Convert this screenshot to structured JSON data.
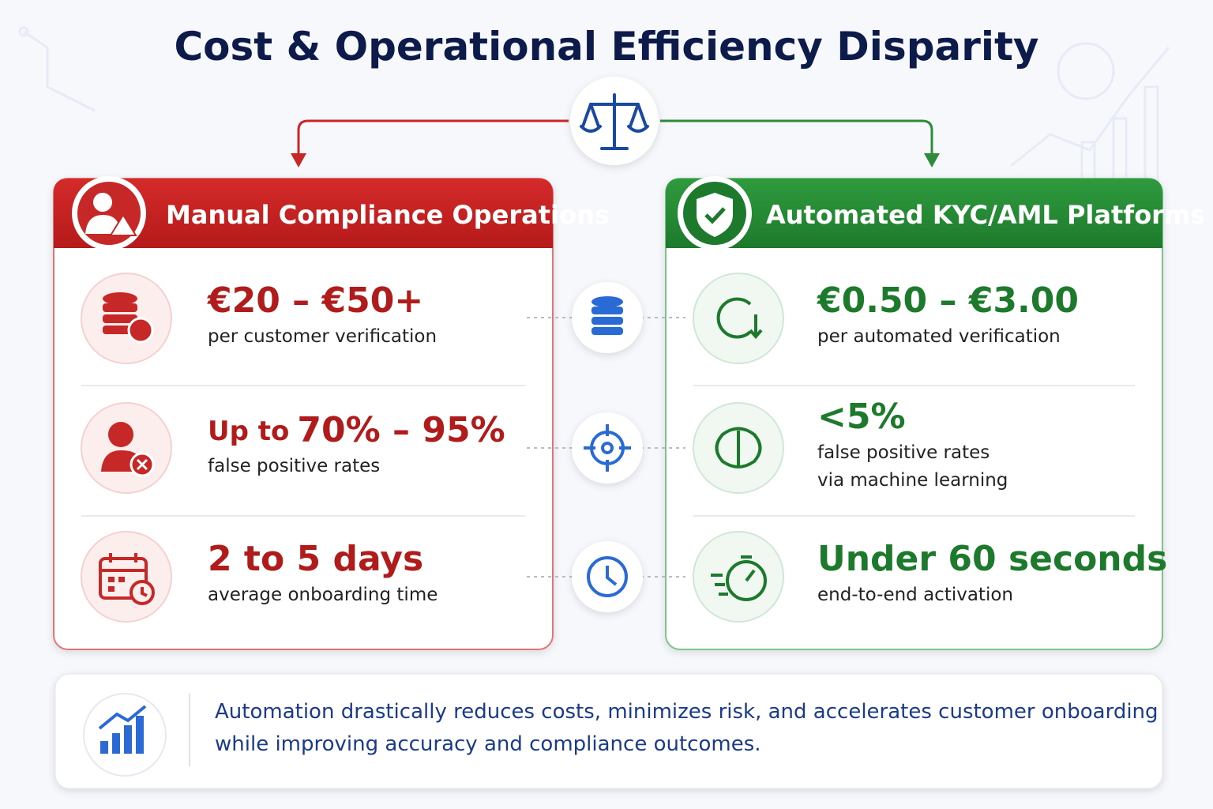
{
  "title": "Cost & Operational Efficiency Disparity",
  "left": {
    "heading": "Manual Compliance Operations",
    "rows": [
      {
        "value": "€20 – €50+",
        "desc": [
          "per customer verification"
        ]
      },
      {
        "prefix": "Up to",
        "value": "70% – 95%",
        "desc": [
          "false positive rates"
        ]
      },
      {
        "value": "2 to 5 days",
        "desc": [
          "average onboarding time"
        ]
      }
    ]
  },
  "right": {
    "heading": "Automated KYC/AML Platforms",
    "rows": [
      {
        "value": "€0.50 – €3.00",
        "desc": [
          "per automated verification"
        ]
      },
      {
        "value": "<5%",
        "desc": [
          "false positive rates",
          "via machine learning"
        ]
      },
      {
        "value": "Under 60 seconds",
        "desc": [
          "end-to-end activation"
        ]
      }
    ]
  },
  "footer": {
    "lines": [
      "Automation drastically reduces costs, minimizes risk, and accelerates customer onboarding",
      "while improving accuracy and compliance outcomes."
    ]
  }
}
